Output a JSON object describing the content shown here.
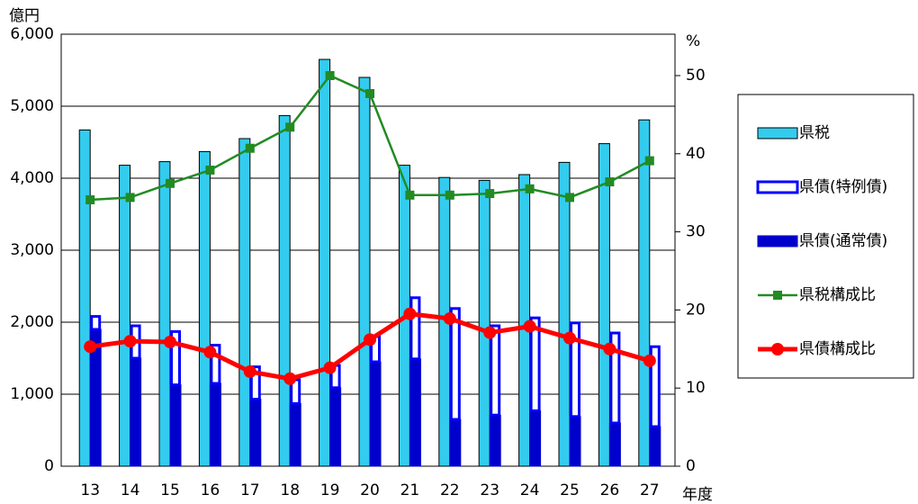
{
  "chart_data": {
    "type": "bar",
    "y_label": "億円",
    "y2_label": "%",
    "x_label": "年度",
    "categories": [
      "13",
      "14",
      "15",
      "16",
      "17",
      "18",
      "19",
      "20",
      "21",
      "22",
      "23",
      "24",
      "25",
      "26",
      "27"
    ],
    "ylim": [
      0,
      6000
    ],
    "yticks": [
      0,
      {
        "value": 1000,
        "label": "1,000"
      },
      {
        "value": 2000,
        "label": "2,000"
      },
      {
        "value": 3000,
        "label": "3,000"
      },
      {
        "value": 4000,
        "label": "4,000"
      },
      {
        "value": 5000,
        "label": "5,000"
      },
      {
        "value": 6000,
        "label": "6,000"
      }
    ],
    "y2lim": [
      0,
      55.3
    ],
    "y2ticks": [
      0,
      10,
      20,
      30,
      40,
      50
    ],
    "grid": true,
    "series": [
      {
        "name": "県税",
        "type": "bar",
        "group": 0,
        "color": "#33ccee",
        "values": [
          4670,
          4180,
          4230,
          4370,
          4550,
          4870,
          5650,
          5400,
          4180,
          4010,
          3970,
          4050,
          4220,
          4480,
          4810
        ]
      },
      {
        "name": "県債(特例債)",
        "type": "bar",
        "group": 1,
        "color": "#0000ff",
        "values": [
          180,
          450,
          740,
          530,
          450,
          330,
          310,
          350,
          850,
          1540,
          1240,
          1290,
          1300,
          1250,
          1110
        ]
      },
      {
        "name": "県債(通常債)",
        "type": "bar",
        "group": 1,
        "color": "#0000cc",
        "values": [
          1900,
          1500,
          1130,
          1150,
          930,
          870,
          1090,
          1450,
          1490,
          650,
          710,
          770,
          690,
          600,
          550
        ]
      },
      {
        "name": "県税構成比",
        "type": "line",
        "axis": "y2",
        "marker": "square",
        "color": "#228b22",
        "values": [
          34.1,
          34.4,
          36.2,
          37.9,
          40.7,
          43.4,
          50.0,
          47.7,
          34.7,
          34.7,
          34.9,
          35.5,
          34.4,
          36.4,
          39.1
        ]
      },
      {
        "name": "県債構成比",
        "type": "line",
        "axis": "y2",
        "marker": "circle",
        "color": "#ff0000",
        "values": [
          15.3,
          16.0,
          15.9,
          14.6,
          12.1,
          11.2,
          12.6,
          16.2,
          19.5,
          18.9,
          17.1,
          17.9,
          16.4,
          15.0,
          13.5
        ]
      }
    ]
  }
}
